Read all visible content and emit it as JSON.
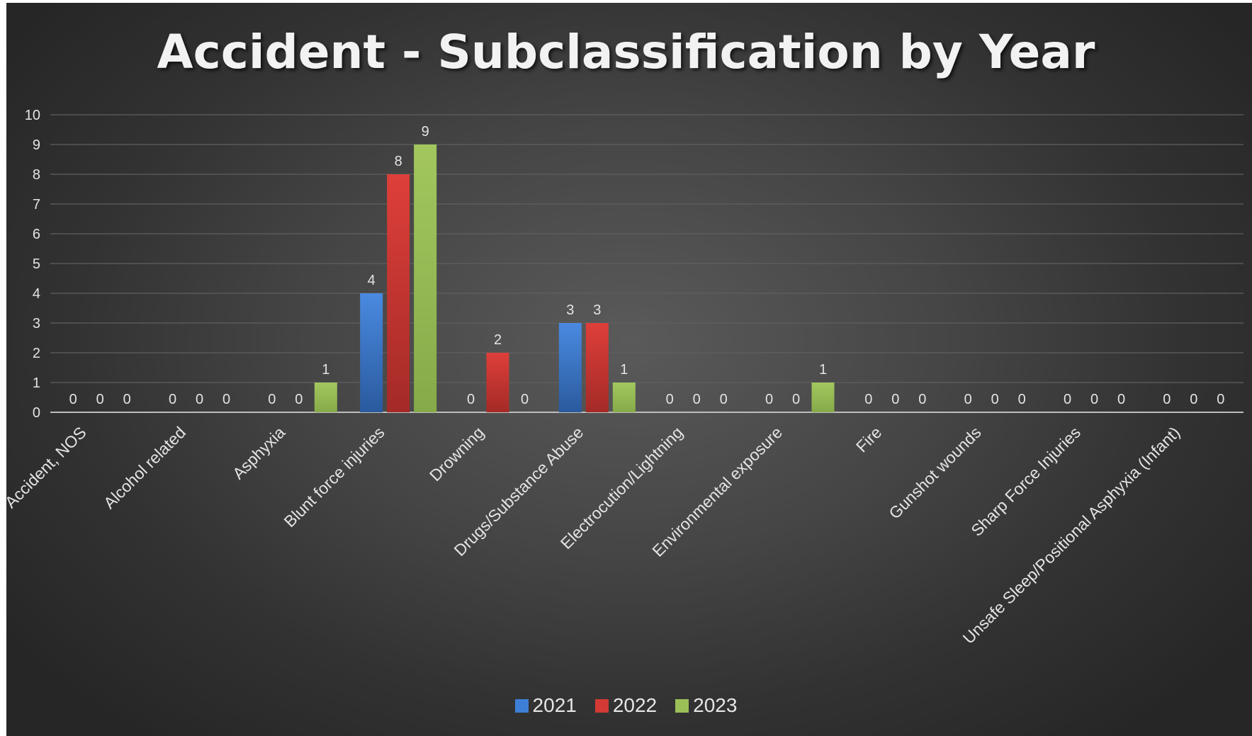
{
  "chart_data": {
    "type": "bar",
    "title": "Accident - Subclassification by Year",
    "xlabel": "",
    "ylabel": "",
    "ylim": [
      0,
      10
    ],
    "yticks": [
      "0",
      "1",
      "2",
      "3",
      "4",
      "5",
      "6",
      "7",
      "8",
      "9",
      "10"
    ],
    "grid": true,
    "legend_position": "bottom",
    "categories": [
      "Accident, NOS",
      "Alcohol related",
      "Asphyxia",
      "Blunt force injuries",
      "Drowning",
      "Drugs/Substance Abuse",
      "Electrocution/Lightning",
      "Environmental exposure",
      "Fire",
      "Gunshot wounds",
      "Sharp Force Injuries",
      "Unsafe Sleep/Positional Asphyxia (Infant)"
    ],
    "series": [
      {
        "name": "2021",
        "color": "#3d7fd6",
        "values": [
          0,
          0,
          0,
          4,
          0,
          3,
          0,
          0,
          0,
          0,
          0,
          0
        ]
      },
      {
        "name": "2022",
        "color": "#d33a35",
        "values": [
          0,
          0,
          0,
          8,
          2,
          3,
          0,
          0,
          0,
          0,
          0,
          0
        ]
      },
      {
        "name": "2023",
        "color": "#9bc057",
        "values": [
          0,
          0,
          1,
          9,
          0,
          1,
          0,
          1,
          0,
          0,
          0,
          0
        ]
      }
    ]
  }
}
